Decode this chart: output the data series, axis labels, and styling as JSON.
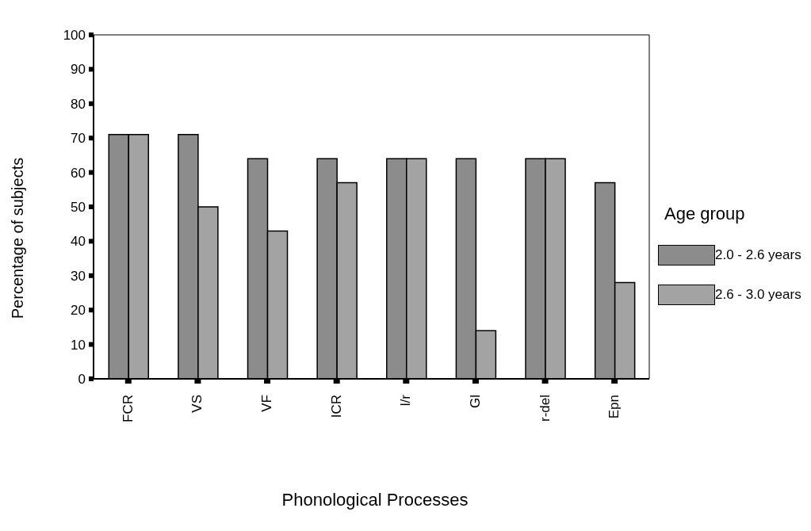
{
  "chart_data": {
    "type": "bar",
    "xlabel": "Phonological Processes",
    "ylabel": "Percentage of subjects",
    "legend_title": "Age group",
    "legend": "right",
    "categories": [
      "FCR",
      "VS",
      "VF",
      "ICR",
      "l/r",
      "Gl",
      "r-del",
      "Epn"
    ],
    "series": [
      {
        "name": "2.0 - 2.6 years",
        "color": "#8c8c8c",
        "values": [
          71,
          71,
          64,
          64,
          64,
          64,
          64,
          57
        ]
      },
      {
        "name": "2.6 - 3.0 years",
        "color": "#a3a3a3",
        "values": [
          71,
          50,
          43,
          57,
          64,
          14,
          64,
          28
        ]
      }
    ],
    "ylim": [
      0,
      100
    ],
    "yticks": [
      0,
      10,
      20,
      30,
      40,
      50,
      60,
      70,
      80,
      90,
      100
    ],
    "grid": false
  }
}
